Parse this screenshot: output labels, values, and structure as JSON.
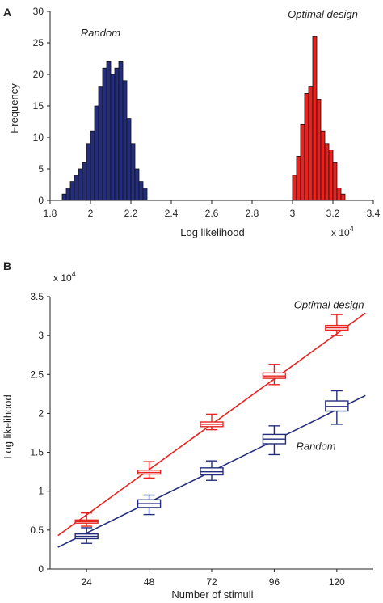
{
  "chart_data": [
    {
      "type": "bar",
      "panel_label": "A",
      "xlabel": "Log likelihood",
      "ylabel": "Frequency",
      "x_multiplier": "x 10",
      "x_multiplier_exp": "4",
      "xlim": [
        1.8,
        3.4
      ],
      "ylim": [
        0,
        30
      ],
      "xticks": [
        "1.8",
        "2",
        "2.2",
        "2.4",
        "2.6",
        "2.8",
        "3",
        "3.2",
        "3.4"
      ],
      "yticks": [
        "0",
        "5",
        "10",
        "15",
        "20",
        "25",
        "30"
      ],
      "bin_width": 0.02,
      "series": [
        {
          "name": "Random",
          "color": "#232d7c",
          "bin_starts": [
            1.86,
            1.88,
            1.9,
            1.92,
            1.94,
            1.96,
            1.98,
            2.0,
            2.02,
            2.04,
            2.06,
            2.08,
            2.1,
            2.12,
            2.14,
            2.16,
            2.18,
            2.2,
            2.22,
            2.24,
            2.26
          ],
          "values": [
            1,
            2,
            3,
            4,
            5,
            6,
            9,
            11,
            15,
            18,
            21,
            22,
            20,
            21,
            22,
            19,
            13,
            9,
            5,
            3,
            2
          ]
        },
        {
          "name": "Optimal design",
          "color": "#e8231f",
          "bin_starts": [
            3.0,
            3.02,
            3.04,
            3.06,
            3.08,
            3.1,
            3.12,
            3.14,
            3.16,
            3.18,
            3.2,
            3.22,
            3.24
          ],
          "values": [
            4,
            7,
            12,
            17,
            18,
            26,
            16,
            11,
            9,
            8,
            6,
            2,
            1
          ]
        }
      ],
      "annotations": [
        {
          "text": "Random",
          "x": 2.05,
          "y": 26
        },
        {
          "text": "Optimal design",
          "x": 3.15,
          "y": 29
        }
      ]
    },
    {
      "type": "box",
      "panel_label": "B",
      "xlabel": "Number of stimuli",
      "ylabel": "Log likelihood",
      "y_multiplier": "x 10",
      "y_multiplier_exp": "4",
      "categories": [
        24,
        48,
        72,
        96,
        120
      ],
      "xticks": [
        "24",
        "48",
        "72",
        "96",
        "120"
      ],
      "yticks": [
        "0",
        "0.5",
        "1",
        "1.5",
        "2",
        "2.5",
        "3",
        "3.5"
      ],
      "ylim": [
        0,
        3.5
      ],
      "xlim": [
        10,
        134
      ],
      "series": [
        {
          "name": "Optimal design",
          "color": "#e8231f",
          "whisker_low": [
            0.55,
            1.17,
            1.79,
            2.37,
            3.0
          ],
          "q1": [
            0.59,
            1.22,
            1.83,
            2.45,
            3.07
          ],
          "median": [
            0.61,
            1.24,
            1.86,
            2.48,
            3.1
          ],
          "q3": [
            0.63,
            1.27,
            1.89,
            2.52,
            3.13
          ],
          "whisker_high": [
            0.72,
            1.38,
            1.99,
            2.63,
            3.27
          ],
          "fit_line": [
            [
              13,
              0.43
            ],
            [
              131,
              3.29
            ]
          ]
        },
        {
          "name": "Random",
          "color": "#232d7c",
          "whisker_low": [
            0.33,
            0.7,
            1.14,
            1.47,
            1.86
          ],
          "q1": [
            0.39,
            0.79,
            1.21,
            1.61,
            2.03
          ],
          "median": [
            0.42,
            0.84,
            1.25,
            1.67,
            2.09
          ],
          "q3": [
            0.45,
            0.89,
            1.3,
            1.73,
            2.16
          ],
          "whisker_high": [
            0.53,
            0.95,
            1.39,
            1.84,
            2.29
          ],
          "fit_line": [
            [
              13,
              0.28
            ],
            [
              131,
              2.23
            ]
          ]
        }
      ],
      "annotations": [
        {
          "text": "Optimal design",
          "x": 117,
          "y": 3.35
        },
        {
          "text": "Random",
          "x": 112,
          "y": 1.53
        }
      ]
    }
  ]
}
